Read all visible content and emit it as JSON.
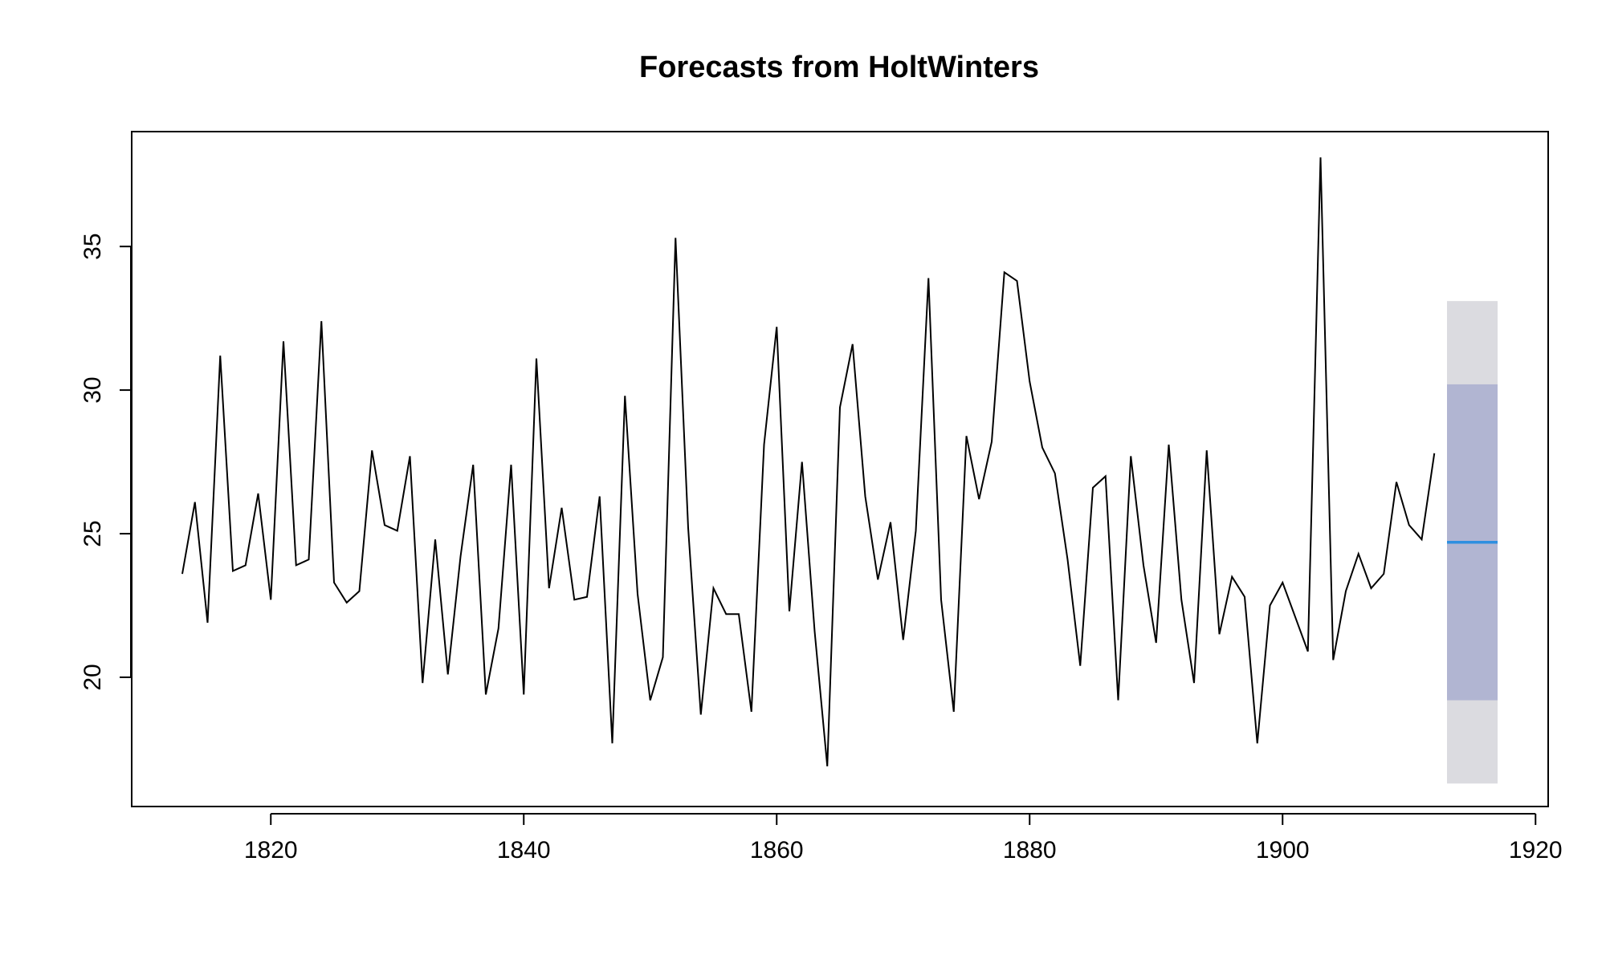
{
  "chart_data": {
    "type": "line",
    "title": "Forecasts from HoltWinters",
    "xlabel": "",
    "ylabel": "",
    "xlim": [
      1809,
      1921
    ],
    "ylim": [
      15.5,
      39
    ],
    "x_ticks": [
      1820,
      1840,
      1860,
      1880,
      1900,
      1920
    ],
    "y_ticks": [
      20,
      25,
      30,
      35
    ],
    "grid": false,
    "colors": {
      "series": "#000000",
      "forecast": "#2E8FE0",
      "band_95": "#DBDBE0",
      "band_80": "#B1B5D2",
      "axis": "#000000"
    },
    "series": [
      {
        "x_start": 1813,
        "values": [
          23.6,
          26.1,
          21.9,
          31.2,
          23.7,
          23.9,
          26.4,
          22.7,
          31.7,
          23.9,
          24.1,
          32.4,
          23.3,
          22.6,
          23.0,
          27.9,
          25.3,
          25.1,
          27.7,
          19.8,
          24.8,
          20.1,
          24.2,
          27.4,
          19.4,
          21.7,
          27.4,
          19.4,
          31.1,
          23.1,
          25.9,
          22.7,
          22.8,
          26.3,
          17.7,
          29.8,
          22.9,
          19.2,
          20.7,
          35.3,
          25.2,
          18.7,
          23.1,
          22.2,
          22.2,
          18.8,
          28.1,
          32.2,
          22.3,
          27.5,
          21.6,
          16.9,
          29.4,
          31.6,
          26.3,
          23.4,
          25.4,
          21.3,
          25.1,
          33.9,
          22.7,
          18.8,
          28.4,
          26.2,
          28.2,
          34.1,
          33.8,
          30.3,
          28.0,
          27.1,
          24.1,
          20.4,
          26.6,
          27.0,
          19.2,
          27.7,
          23.9,
          21.2,
          28.1,
          22.7,
          19.8,
          27.9,
          21.5,
          23.5,
          22.8,
          17.7,
          22.5,
          23.3,
          22.1,
          20.9,
          38.1,
          20.6,
          23.0,
          24.3,
          23.1,
          23.6,
          26.8,
          25.3,
          24.8,
          27.8
        ]
      },
      {
        "x": [
          1913,
          1917
        ],
        "values": [
          24.7,
          24.7
        ]
      }
    ],
    "forecast_interval": {
      "x": [
        1913,
        1917
      ],
      "lower_80": 19.2,
      "upper_80": 30.2,
      "lower_95": 16.3,
      "upper_95": 33.1
    }
  }
}
